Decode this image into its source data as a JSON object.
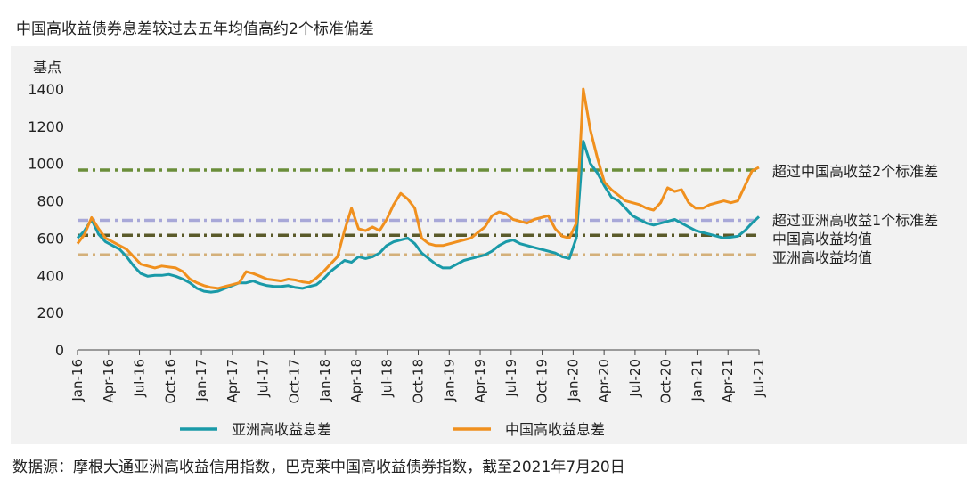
{
  "title": "中国高收益债券息差较过去五年均值高约2个标准偏差",
  "source": "数据源：摩根大通亚洲高收益信用指数，巴克莱中国高收益债券指数，截至2021年7月20日",
  "chart_data": {
    "type": "line",
    "ylabel": "基点",
    "ylim": [
      0,
      1400
    ],
    "yticks": [
      "0",
      "200",
      "400",
      "600",
      "800",
      "1000",
      "1200",
      "1400"
    ],
    "xticks": [
      "Jan-16",
      "Apr-16",
      "Jul-16",
      "Oct-16",
      "Jan-17",
      "Apr-17",
      "Jul-17",
      "Oct-17",
      "Jan-18",
      "Apr-18",
      "Jul-18",
      "Oct-18",
      "Jan-19",
      "Apr-19",
      "Jul-19",
      "Oct-19",
      "Jan-20",
      "Apr-20",
      "Jul-20",
      "Oct-20",
      "Jan-21",
      "Apr-21",
      "Jul-21"
    ],
    "grid": false,
    "legend_position": "bottom",
    "reference_lines": [
      {
        "label": "超过中国高收益2个标准差",
        "value": 965,
        "color": "#6b8e3a"
      },
      {
        "label": "超过亚洲高收益1个标准差",
        "value": 695,
        "color": "#a8a8d8"
      },
      {
        "label": "中国高收益均值",
        "value": 615,
        "color": "#5a5a2a"
      },
      {
        "label": "亚洲高收益均值",
        "value": 510,
        "color": "#d4b07a"
      }
    ],
    "series": [
      {
        "name": "亚洲高收益息差",
        "color": "#1a9aa8",
        "values": [
          600,
          640,
          700,
          620,
          580,
          560,
          540,
          500,
          450,
          410,
          395,
          400,
          400,
          405,
          395,
          380,
          360,
          330,
          315,
          310,
          315,
          330,
          345,
          360,
          360,
          370,
          355,
          345,
          340,
          340,
          345,
          335,
          330,
          340,
          350,
          380,
          420,
          450,
          480,
          470,
          500,
          490,
          500,
          520,
          560,
          580,
          590,
          600,
          570,
          520,
          490,
          460,
          440,
          440,
          460,
          480,
          490,
          500,
          510,
          530,
          560,
          580,
          590,
          570,
          560,
          550,
          540,
          530,
          520,
          500,
          490,
          600,
          1120,
          1000,
          950,
          880,
          820,
          800,
          760,
          720,
          700,
          680,
          670,
          680,
          690,
          700,
          680,
          660,
          640,
          630,
          620,
          610,
          600,
          605,
          610,
          640,
          680,
          715
        ]
      },
      {
        "name": "中国高收益息差",
        "color": "#f0901e",
        "values": [
          570,
          620,
          710,
          650,
          600,
          580,
          560,
          540,
          500,
          460,
          450,
          440,
          450,
          445,
          440,
          420,
          380,
          360,
          345,
          335,
          330,
          340,
          350,
          360,
          420,
          410,
          395,
          380,
          375,
          370,
          380,
          375,
          365,
          360,
          385,
          420,
          460,
          500,
          640,
          760,
          650,
          640,
          660,
          640,
          700,
          780,
          840,
          810,
          760,
          600,
          570,
          560,
          560,
          570,
          580,
          590,
          600,
          630,
          660,
          720,
          740,
          730,
          700,
          690,
          680,
          700,
          710,
          720,
          650,
          610,
          600,
          680,
          1400,
          1180,
          1030,
          900,
          860,
          830,
          800,
          790,
          780,
          760,
          750,
          790,
          870,
          850,
          860,
          790,
          760,
          760,
          780,
          790,
          800,
          790,
          800,
          880,
          960,
          980
        ]
      }
    ]
  }
}
